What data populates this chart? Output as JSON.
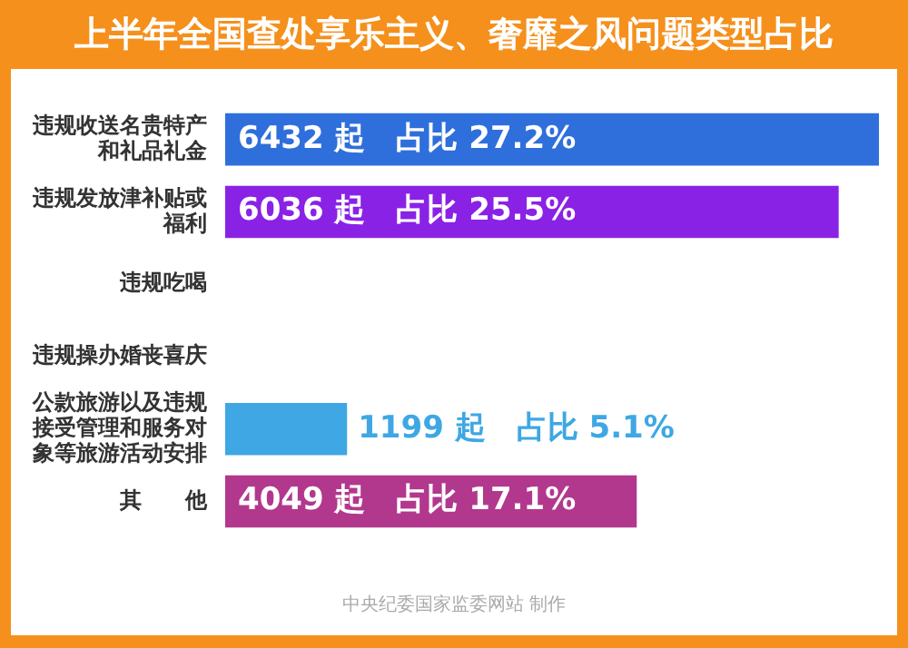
{
  "chart_data": {
    "type": "bar",
    "orientation": "horizontal",
    "title": "上半年全国查处享乐主义、奢靡之风问题类型占比",
    "categories": [
      "违规收送名贵特产和礼品礼金",
      "违规发放津补贴或福利",
      "违规吃喝",
      "违规操办婚丧喜庆",
      "公款旅游以及违规接受管理和服务对象等旅游活动安排",
      "其　　他"
    ],
    "values": [
      6432,
      6036,
      null,
      null,
      1199,
      4049
    ],
    "colors": [
      "#2f6fdc",
      "#8a22e6",
      "#9c5a28",
      "#5aa64a",
      "#3ea7e4",
      "#b2388e"
    ],
    "value_labels": [
      "6432 起　占比 27.2%",
      "6036 起　占比 25.5%",
      null,
      null,
      "1199 起　占比 5.1%",
      "4049 起　占比 17.1%"
    ],
    "tick_labels": "y",
    "grid": false,
    "legend": false,
    "annotations": [
      "中央纪委国家监委网站 制作"
    ]
  }
}
